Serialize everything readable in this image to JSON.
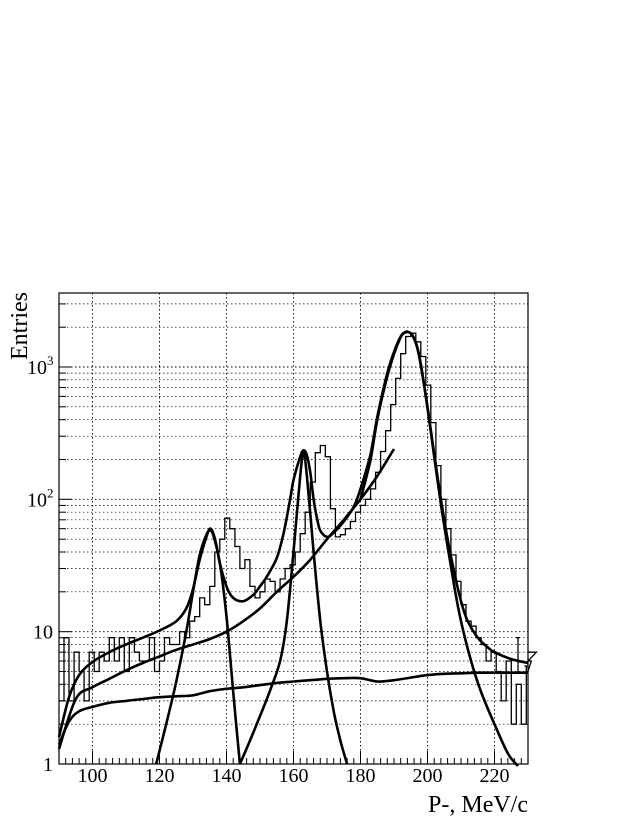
{
  "chart_data": {
    "type": "line",
    "title": "",
    "xlabel": "P-, MeV/c",
    "ylabel": "Entries",
    "xlim": [
      90,
      230
    ],
    "ylim": [
      1,
      3500
    ],
    "y_scale": "log",
    "grid": true,
    "x_ticks": [
      {
        "value": 100,
        "label": "100"
      },
      {
        "value": 120,
        "label": "120"
      },
      {
        "value": 140,
        "label": "140"
      },
      {
        "value": 160,
        "label": "160"
      },
      {
        "value": 180,
        "label": "180"
      },
      {
        "value": 200,
        "label": "200"
      },
      {
        "value": 220,
        "label": "220"
      }
    ],
    "y_ticks": [
      {
        "value": 1,
        "label": "1",
        "base": "",
        "exp": ""
      },
      {
        "value": 10,
        "label": "10",
        "base": "",
        "exp": ""
      },
      {
        "value": 100,
        "label": "",
        "base": "10",
        "exp": "2"
      },
      {
        "value": 1000,
        "label": "",
        "base": "10",
        "exp": "3"
      }
    ],
    "histogram": {
      "bin_width": 1.5,
      "x_start": 90,
      "counts": [
        3,
        9,
        3,
        7,
        5,
        3,
        7,
        5,
        7,
        6,
        9,
        6,
        9,
        5,
        9,
        7,
        6,
        6,
        9,
        5,
        6,
        9,
        8,
        8,
        10,
        9,
        12,
        13,
        18,
        16,
        22,
        40,
        50,
        72,
        60,
        44,
        30,
        35,
        22,
        18,
        20,
        25,
        24,
        20,
        25,
        30,
        32,
        40,
        55,
        80,
        135,
        225,
        255,
        210,
        85,
        52,
        54,
        60,
        68,
        80,
        90,
        100,
        120,
        160,
        230,
        330,
        520,
        820,
        1260,
        1700,
        1800,
        1550,
        1200,
        730,
        380,
        180,
        100,
        60,
        38,
        24,
        16,
        12,
        11,
        9,
        8,
        6,
        7,
        5,
        3,
        6,
        2,
        4,
        2,
        5,
        6,
        7
      ],
      "extra_counts": {
        "227": 9,
        "229.5": 5.5
      }
    },
    "series": [
      {
        "x": [
          90,
          93,
          96,
          100,
          105,
          110,
          115,
          120,
          125,
          128,
          130,
          132,
          134,
          135,
          136,
          137,
          138,
          140,
          142,
          145,
          148,
          150,
          152,
          155,
          157,
          159,
          160,
          162,
          163,
          164,
          165,
          166,
          167,
          168,
          170,
          172,
          175,
          178,
          180,
          183,
          185,
          188,
          190,
          192,
          193,
          194,
          195,
          196,
          197,
          198,
          200,
          202,
          204,
          206,
          208,
          210,
          212,
          215,
          218,
          220,
          225,
          230
        ],
        "values": [
          1.6,
          3.2,
          4.7,
          5.9,
          7.0,
          8.0,
          9.0,
          10.2,
          12.0,
          15.0,
          21.0,
          35.0,
          52.0,
          60.0,
          56.0,
          45.0,
          33.0,
          22.0,
          18.0,
          17.0,
          19.0,
          22.0,
          26.0,
          36.0,
          55.0,
          100.0,
          140.0,
          210.0,
          235.0,
          215.0,
          160.0,
          100.0,
          72.0,
          58.0,
          52.0,
          56.0,
          68.0,
          88.0,
          120.0,
          220.0,
          420.0,
          900.0,
          1300.0,
          1700.0,
          1820.0,
          1850.0,
          1800.0,
          1650.0,
          1400.0,
          1050.0,
          500.0,
          220.0,
          100.0,
          50.0,
          28.0,
          17.0,
          12.0,
          9.0,
          7.6,
          7.0,
          6.2,
          5.8
        ]
      },
      {
        "x": [
          90,
          95,
          100,
          105,
          110,
          115,
          120,
          125,
          130,
          135,
          140,
          145,
          150,
          155,
          160,
          165,
          170,
          175,
          180,
          185,
          190
        ],
        "values": [
          1.3,
          3.1,
          3.8,
          4.4,
          5.1,
          5.8,
          6.5,
          7.3,
          8.0,
          8.8,
          10.0,
          12.0,
          15.0,
          20.0,
          26.0,
          35.0,
          50.0,
          70.0,
          100.0,
          150.0,
          240.0
        ]
      },
      {
        "x": [
          119,
          122,
          125,
          128,
          130,
          132,
          134,
          135,
          136,
          138,
          140,
          142,
          144
        ],
        "values": [
          1.0,
          2.0,
          4.2,
          10.0,
          20.0,
          38.0,
          54.0,
          58.0,
          54.0,
          33.0,
          13.0,
          3.5,
          1.0
        ]
      },
      {
        "x": [
          144,
          147,
          150,
          153,
          156,
          158,
          160,
          162,
          163,
          164,
          166,
          168,
          170,
          172,
          174,
          176
        ],
        "values": [
          1.0,
          1.5,
          2.3,
          3.6,
          6.0,
          12.0,
          40.0,
          150.0,
          225.0,
          150.0,
          40.0,
          12.0,
          5.0,
          2.5,
          1.5,
          1.0
        ]
      },
      {
        "x": [
          180,
          183,
          185,
          188,
          190,
          192,
          193,
          194,
          195,
          196,
          197,
          198,
          200,
          202,
          204,
          206,
          208,
          210,
          213,
          216,
          220,
          224,
          227
        ],
        "values": [
          100.0,
          200.0,
          400.0,
          850.0,
          1250.0,
          1680.0,
          1800.0,
          1840.0,
          1790.0,
          1640.0,
          1380.0,
          1030.0,
          490.0,
          210.0,
          92.0,
          44.0,
          22.0,
          12.0,
          6.0,
          3.5,
          2.0,
          1.2,
          0.9
        ]
      },
      {
        "x": [
          90,
          93,
          96,
          100,
          105,
          110,
          115,
          120,
          125,
          130,
          135,
          140,
          145,
          150,
          155,
          160,
          165,
          170,
          175,
          180,
          185,
          190,
          195,
          200,
          205,
          210,
          215,
          220,
          225,
          230
        ],
        "values": [
          1.4,
          2.1,
          2.5,
          2.7,
          2.9,
          3.0,
          3.1,
          3.2,
          3.25,
          3.3,
          3.55,
          3.7,
          3.8,
          3.95,
          4.1,
          4.2,
          4.3,
          4.4,
          4.45,
          4.45,
          4.2,
          4.3,
          4.5,
          4.7,
          4.8,
          4.85,
          4.9,
          4.9,
          4.9,
          4.9
        ]
      }
    ]
  }
}
